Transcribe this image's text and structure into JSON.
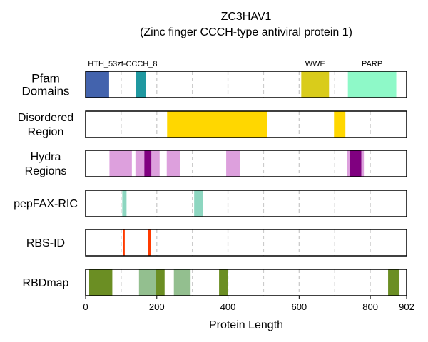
{
  "chart_data": {
    "type": "bar",
    "title": "ZC3HAV1",
    "subtitle": "(Zinc finger CCCH-type antiviral protein 1)",
    "xlabel": "Protein Length",
    "xlim": [
      0,
      902
    ],
    "x_ticks": [
      0,
      200,
      400,
      600,
      800,
      902
    ],
    "grid_x": [
      100,
      200,
      300,
      400,
      500,
      600,
      700,
      800
    ],
    "tracks": [
      {
        "label_lines": [
          "Pfam",
          "Domains"
        ],
        "segments": [
          {
            "start": 2,
            "end": 66,
            "color": "#4363ad"
          },
          {
            "start": 141,
            "end": 169,
            "color": "#1f98a0"
          },
          {
            "start": 606,
            "end": 684,
            "color": "#d9cc1b"
          },
          {
            "start": 737,
            "end": 873,
            "color": "#8ef9c8"
          }
        ]
      },
      {
        "label_lines": [
          "Disordered",
          "Region"
        ],
        "segments": [
          {
            "start": 229,
            "end": 510,
            "color": "#ffd700"
          },
          {
            "start": 698,
            "end": 730,
            "color": "#ffd700"
          }
        ]
      },
      {
        "label_lines": [
          "Hydra",
          "Regions"
        ],
        "segments": [
          {
            "start": 67,
            "end": 130,
            "color": "#dda0dd"
          },
          {
            "start": 140,
            "end": 165,
            "color": "#dda0dd"
          },
          {
            "start": 165,
            "end": 185,
            "color": "#800080"
          },
          {
            "start": 185,
            "end": 208,
            "color": "#dda0dd"
          },
          {
            "start": 228,
            "end": 265,
            "color": "#dda0dd"
          },
          {
            "start": 395,
            "end": 434,
            "color": "#dda0dd"
          },
          {
            "start": 735,
            "end": 742,
            "color": "#dda0dd"
          },
          {
            "start": 742,
            "end": 775,
            "color": "#800080"
          },
          {
            "start": 775,
            "end": 782,
            "color": "#dda0dd"
          }
        ]
      },
      {
        "label_lines": [
          "pepFAX-RIC"
        ],
        "segments": [
          {
            "start": 103,
            "end": 115,
            "color": "#8dd6c0"
          },
          {
            "start": 305,
            "end": 330,
            "color": "#8dd6c0"
          }
        ]
      },
      {
        "label_lines": [
          "RBS-ID"
        ],
        "segments": [
          {
            "start": 106,
            "end": 110,
            "color": "#ff3b00"
          },
          {
            "start": 176,
            "end": 184,
            "color": "#ff3b00"
          }
        ]
      },
      {
        "label_lines": [
          "RBDmap"
        ],
        "segments": [
          {
            "start": 10,
            "end": 75,
            "color": "#6b8e23"
          },
          {
            "start": 150,
            "end": 198,
            "color": "#93bf8f"
          },
          {
            "start": 198,
            "end": 222,
            "color": "#6b8e23"
          },
          {
            "start": 248,
            "end": 295,
            "color": "#93bf8f"
          },
          {
            "start": 375,
            "end": 400,
            "color": "#6b8e23"
          },
          {
            "start": 850,
            "end": 882,
            "color": "#6b8e23"
          }
        ]
      }
    ],
    "domain_names": [
      {
        "text": "HTH_53zf-CCCH_8",
        "anchor_x": 104
      },
      {
        "text": "WWE",
        "anchor_x": 645
      },
      {
        "text": "PARP",
        "anchor_x": 805
      }
    ]
  }
}
